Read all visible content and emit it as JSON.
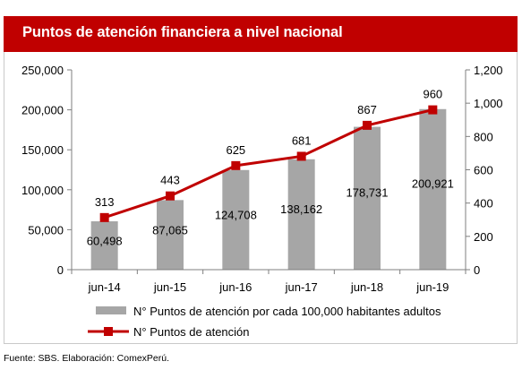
{
  "header": {
    "title": "Puntos de atención financiera a nivel nacional"
  },
  "footer": {
    "source": "Fuente: SBS. Elaboración: ComexPerú."
  },
  "colors": {
    "title_bar": "#c00000",
    "bars": "#a6a6a6",
    "line": "#c00000",
    "axis": "#7f7f7f"
  },
  "chart_data": {
    "type": "bar",
    "categories": [
      "jun-14",
      "jun-15",
      "jun-16",
      "jun-17",
      "jun-18",
      "jun-19"
    ],
    "series": [
      {
        "name": "N° Puntos de atención por cada 100,000 habitantes adultos",
        "type": "bar",
        "axis": "left",
        "values": [
          60498,
          87065,
          124708,
          138162,
          178731,
          200921
        ],
        "labels": [
          "60,498",
          "87,065",
          "124,708",
          "138,162",
          "178,731",
          "200,921"
        ]
      },
      {
        "name": "N° Puntos de atención",
        "type": "line",
        "axis": "right",
        "marker": "square",
        "values": [
          313,
          443,
          625,
          681,
          867,
          960
        ],
        "labels": [
          "313",
          "443",
          "625",
          "681",
          "867",
          "960"
        ]
      }
    ],
    "y_left": {
      "lim": [
        0,
        250000
      ],
      "ticks": [
        0,
        50000,
        100000,
        150000,
        200000,
        250000
      ],
      "tick_labels": [
        "0",
        "50,000",
        "100,000",
        "150,000",
        "200,000",
        "250,000"
      ]
    },
    "y_right": {
      "lim": [
        0,
        1200
      ],
      "ticks": [
        0,
        200,
        400,
        600,
        800,
        1000,
        1200
      ],
      "tick_labels": [
        "0",
        "200",
        "400",
        "600",
        "800",
        "1,000",
        "1,200"
      ]
    },
    "grid": false,
    "legend_position": "bottom"
  }
}
